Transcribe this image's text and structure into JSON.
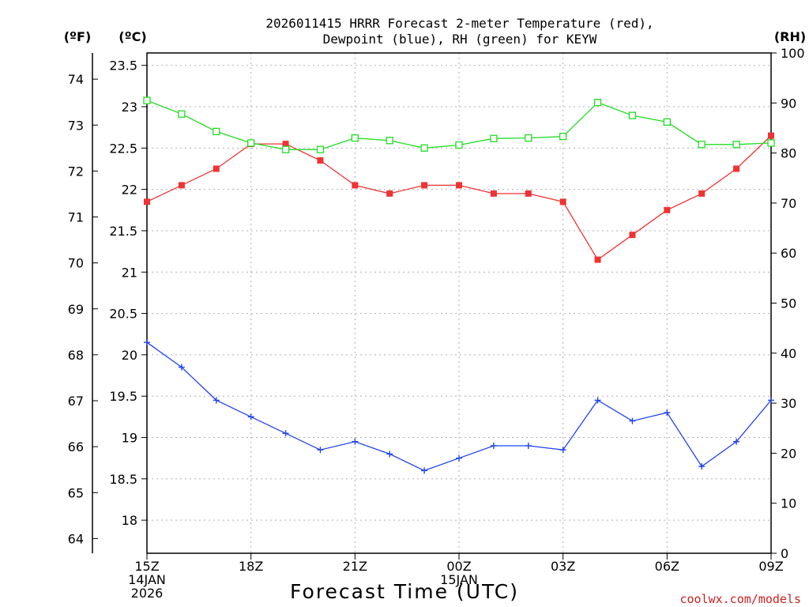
{
  "chart_data": {
    "type": "line",
    "title": [
      "2026011415 HRRR Forecast 2-meter Temperature (red),",
      "Dewpoint (blue), RH (green) for KEYW"
    ],
    "xlabel": "Forecast Time (UTC)",
    "credit": "coolwx.com/models",
    "units": {
      "fahrenheit": "(ºF)",
      "celsius": "(ºC)",
      "rh": "(RH)"
    },
    "x_hours": [
      0,
      1,
      2,
      3,
      4,
      5,
      6,
      7,
      8,
      9,
      10,
      11,
      12,
      13,
      14,
      15,
      16,
      17,
      18
    ],
    "x_range_hours": [
      0,
      18
    ],
    "x_ticks": [
      {
        "hour": 0,
        "lines": [
          "15Z",
          "14JAN",
          "2026"
        ]
      },
      {
        "hour": 3,
        "lines": [
          "18Z"
        ]
      },
      {
        "hour": 6,
        "lines": [
          "21Z"
        ]
      },
      {
        "hour": 9,
        "lines": [
          "00Z",
          "15JAN"
        ]
      },
      {
        "hour": 12,
        "lines": [
          "03Z"
        ]
      },
      {
        "hour": 15,
        "lines": [
          "06Z"
        ]
      },
      {
        "hour": 18,
        "lines": [
          "09Z"
        ]
      }
    ],
    "celsius_axis": {
      "range": [
        17.6,
        23.65
      ],
      "ticks": [
        "18",
        "18.5",
        "19",
        "19.5",
        "20",
        "20.5",
        "21",
        "21.5",
        "22",
        "22.5",
        "23",
        "23.5"
      ]
    },
    "fahrenheit_axis": {
      "ticks": [
        "64",
        "65",
        "66",
        "67",
        "68",
        "69",
        "70",
        "71",
        "72",
        "73",
        "74"
      ]
    },
    "rh_axis": {
      "range": [
        0,
        100
      ],
      "ticks": [
        "0",
        "10",
        "20",
        "30",
        "40",
        "50",
        "60",
        "70",
        "80",
        "90",
        "100"
      ]
    },
    "series": [
      {
        "name": "Temperature",
        "axis": "celsius",
        "color": "#ee3333",
        "marker": "filled-square",
        "values": [
          21.85,
          22.05,
          22.25,
          22.55,
          22.55,
          22.35,
          22.05,
          21.95,
          22.05,
          22.05,
          21.95,
          21.95,
          21.85,
          21.15,
          21.45,
          21.75,
          21.95,
          22.25,
          22.65
        ]
      },
      {
        "name": "Dewpoint",
        "axis": "celsius",
        "color": "#2244ee",
        "marker": "plus",
        "values": [
          20.15,
          19.85,
          19.45,
          19.25,
          19.05,
          18.85,
          18.95,
          18.8,
          18.6,
          18.75,
          18.9,
          18.9,
          18.85,
          19.45,
          19.2,
          19.3,
          18.65,
          18.95,
          19.45
        ]
      },
      {
        "name": "RH",
        "axis": "rh",
        "color": "#22dd22",
        "marker": "open-square",
        "values": [
          90.5,
          87.8,
          84.3,
          82.0,
          80.7,
          80.7,
          83.0,
          82.5,
          81.0,
          81.6,
          82.9,
          83.0,
          83.3,
          90.1,
          87.5,
          86.2,
          81.7,
          81.7,
          82.0
        ]
      }
    ]
  }
}
